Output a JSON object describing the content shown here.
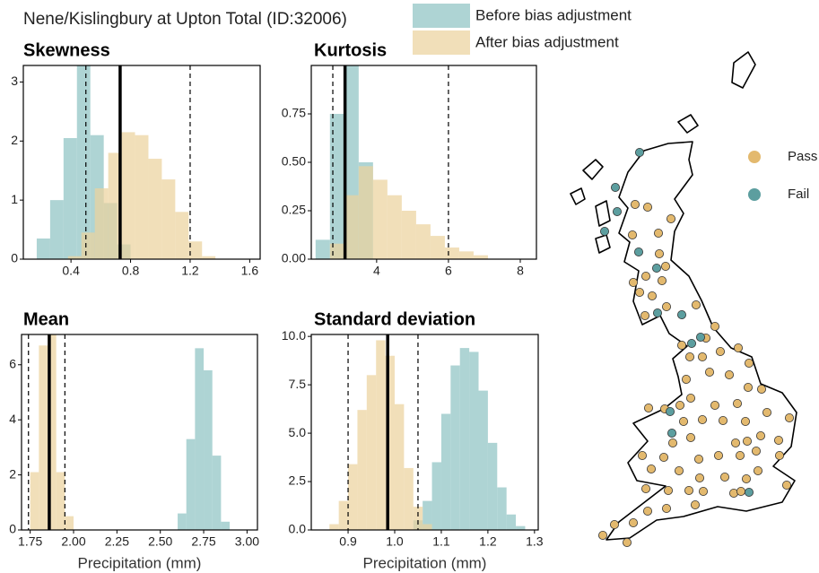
{
  "figure": {
    "title": "Nene/Kislingbury at Upton Total (ID:32006)"
  },
  "chart_data": [
    {
      "type": "histogram",
      "title": "Skewness",
      "xlim": [
        0.08,
        1.67
      ],
      "ylim": [
        0,
        3.28
      ],
      "xticks": [
        0.4,
        0.8,
        1.2,
        1.6
      ],
      "yticks": [
        0,
        1,
        2,
        3
      ],
      "series": [
        {
          "name": "Before bias adjustment",
          "color": "#8fc4c4",
          "bins": [
            0.17,
            0.26,
            0.35,
            0.44,
            0.53,
            0.62,
            0.71,
            0.8
          ],
          "values": [
            0.35,
            1.0,
            2.05,
            3.3,
            2.1,
            0.95,
            0.25
          ]
        },
        {
          "name": "After bias adjustment",
          "color": "#ecd29e",
          "bins": [
            0.38,
            0.47,
            0.56,
            0.65,
            0.74,
            0.83,
            0.92,
            1.01,
            1.1,
            1.19,
            1.28,
            1.37
          ],
          "values": [
            0.05,
            0.45,
            1.2,
            1.8,
            2.15,
            2.1,
            1.7,
            1.35,
            0.8,
            0.3,
            0.05
          ]
        }
      ],
      "observed": 0.73,
      "bounds": [
        0.5,
        1.2
      ]
    },
    {
      "type": "histogram",
      "title": "Kurtosis",
      "xlim": [
        2.18,
        8.45
      ],
      "ylim": [
        0,
        1.0
      ],
      "xticks": [
        4,
        6,
        8
      ],
      "yticks": [
        {
          "value": 0,
          "label": "0.00"
        },
        {
          "value": 0.25,
          "label": "0.25"
        },
        {
          "value": 0.5,
          "label": "0.50"
        },
        {
          "value": 0.75,
          "label": "0.75"
        }
      ],
      "series": [
        {
          "name": "Before bias adjustment",
          "color": "#8fc4c4",
          "bins": [
            2.3,
            2.7,
            3.1,
            3.5,
            3.9
          ],
          "values": [
            0.1,
            0.75,
            1.05,
            0.5
          ]
        },
        {
          "name": "After bias adjustment",
          "color": "#ecd29e",
          "bins": [
            2.7,
            3.1,
            3.5,
            3.9,
            4.3,
            4.7,
            5.1,
            5.5,
            5.9,
            6.3,
            6.7,
            7.1
          ],
          "values": [
            0.08,
            0.33,
            0.48,
            0.41,
            0.33,
            0.25,
            0.18,
            0.12,
            0.06,
            0.04,
            0.02
          ]
        }
      ],
      "observed": 3.12,
      "bounds": [
        2.78,
        6.0
      ]
    },
    {
      "type": "histogram",
      "title": "Mean",
      "xlabel": "Precipitation (mm)",
      "xlim": [
        1.7,
        3.06
      ],
      "ylim": [
        0,
        7.1
      ],
      "xticks": [
        1.75,
        {
          "value": 2,
          "label": "2.00"
        },
        2.25,
        {
          "value": 2.5,
          "label": "2.50"
        },
        2.75,
        {
          "value": 3,
          "label": "3.00"
        }
      ],
      "yticks": [
        0,
        2,
        4,
        6
      ],
      "series": [
        {
          "name": "Before bias adjustment",
          "color": "#8fc4c4",
          "bins": [
            2.6,
            2.65,
            2.7,
            2.75,
            2.8,
            2.85,
            2.9
          ],
          "values": [
            0.6,
            3.3,
            6.6,
            5.8,
            2.7,
            0.3
          ]
        },
        {
          "name": "After bias adjustment",
          "color": "#ecd29e",
          "bins": [
            1.75,
            1.8,
            1.85,
            1.9,
            1.95,
            2.0
          ],
          "values": [
            2.1,
            6.7,
            7.2,
            2.1,
            0.5
          ]
        }
      ],
      "observed": 1.86,
      "bounds": [
        1.74,
        1.95
      ]
    },
    {
      "type": "histogram",
      "title": "Standard deviation",
      "xlabel": "Precipitation (mm)",
      "xlim": [
        0.821,
        1.308
      ],
      "ylim": [
        0,
        10.1
      ],
      "xticks": [
        0.9,
        {
          "value": 1,
          "label": "1.0"
        },
        1.1,
        1.2,
        1.3
      ],
      "yticks": [
        {
          "value": 0,
          "label": "0.0"
        },
        2.5,
        {
          "value": 5,
          "label": "5.0"
        },
        7.5,
        {
          "value": 10,
          "label": "10.0"
        }
      ],
      "series": [
        {
          "name": "Before bias adjustment",
          "color": "#8fc4c4",
          "bins": [
            1.04,
            1.06,
            1.08,
            1.1,
            1.12,
            1.14,
            1.16,
            1.18,
            1.2,
            1.22,
            1.24,
            1.26,
            1.28
          ],
          "values": [
            0.5,
            1.5,
            3.5,
            6.0,
            8.5,
            9.4,
            9.2,
            7.2,
            4.5,
            2.2,
            0.8,
            0.2
          ]
        },
        {
          "name": "After bias adjustment",
          "color": "#ecd29e",
          "bins": [
            0.86,
            0.88,
            0.9,
            0.92,
            0.94,
            0.96,
            0.98,
            1.0,
            1.02,
            1.04,
            1.06,
            1.08
          ],
          "values": [
            0.3,
            1.5,
            3.4,
            6.2,
            8.0,
            9.8,
            9.0,
            6.5,
            3.2,
            1.2,
            0.3
          ]
        }
      ],
      "observed": 0.985,
      "bounds": [
        0.9,
        1.05
      ]
    }
  ],
  "map": {
    "legend": [
      {
        "label": "Pass",
        "color": "#e3b96e"
      },
      {
        "label": "Fail",
        "color": "#5c9e9f"
      }
    ]
  }
}
